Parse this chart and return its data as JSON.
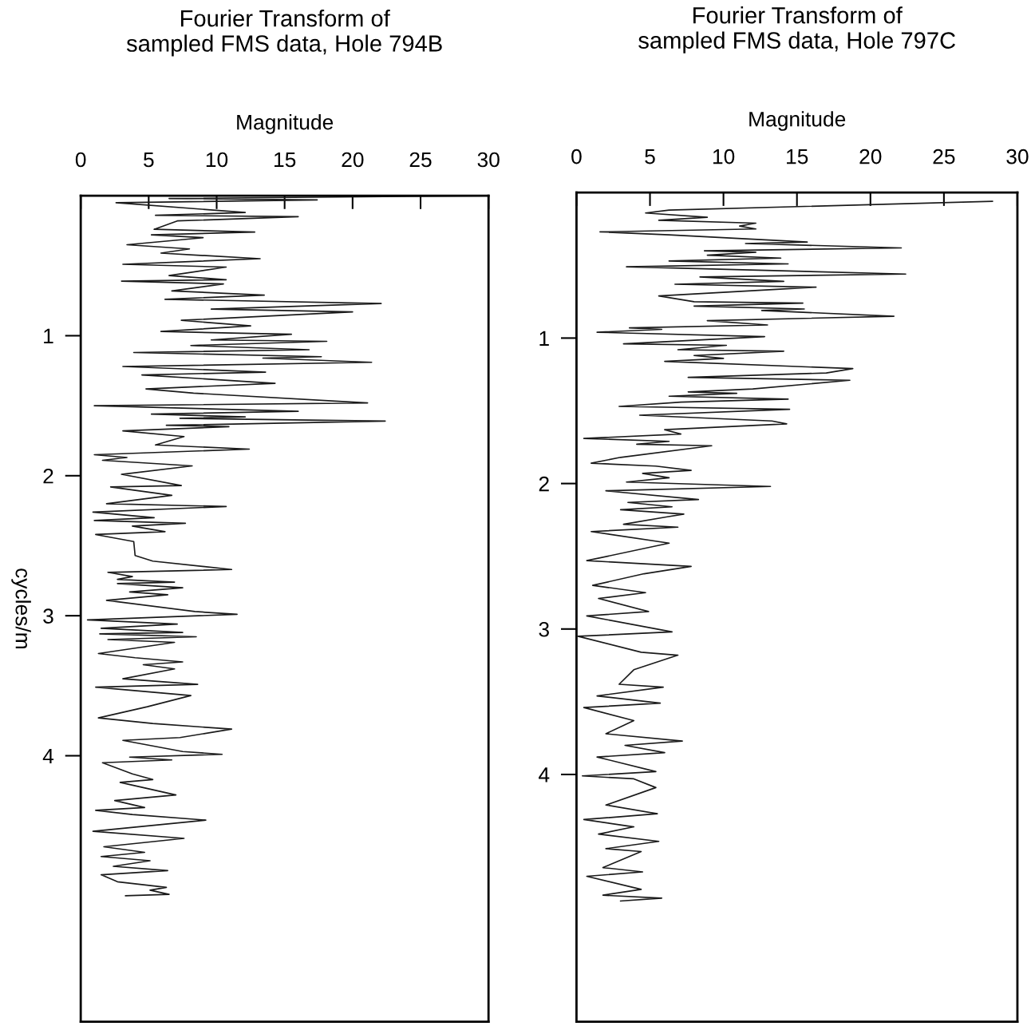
{
  "chart_data": [
    {
      "type": "line",
      "title": "Fourier Transform of\nsampled FMS data, Hole 794B",
      "xlabel": "Magnitude",
      "ylabel": "cycles/m",
      "xlim": [
        0,
        30
      ],
      "ylim": [
        5.9,
        0
      ],
      "xticks": [
        0,
        5,
        10,
        15,
        20,
        25,
        30
      ],
      "yticks": [
        1,
        2,
        3,
        4
      ],
      "series": [
        {
          "color": "#1a1a1a",
          "x": [
            29.9,
            6.5,
            17.4,
            2.6,
            12.1,
            5.5,
            16.0,
            7.1,
            5.4,
            12.8,
            5.2,
            9.0,
            3.4,
            8.0,
            5.9,
            13.2,
            3.1,
            10.7,
            6.5,
            10.7,
            3.0,
            10.5,
            6.7,
            13.5,
            6.2,
            22.1,
            9.6,
            20.0,
            7.4,
            12.5,
            5.9,
            15.5,
            9.6,
            18.1,
            8.1,
            16.8,
            3.9,
            17.7,
            13.4,
            21.4,
            3.1,
            13.6,
            4.5,
            14.3,
            4.8,
            8.3,
            21.1,
            1.0,
            16.0,
            5.2,
            12.1,
            7.3,
            22.4,
            6.3,
            10.9,
            3.1,
            7.6,
            5.5,
            12.4,
            1.0,
            3.4,
            1.6,
            8.2,
            3.0,
            7.4,
            2.2,
            6.7,
            1.9,
            10.7,
            0.9,
            5.4,
            1.0,
            7.7,
            3.8,
            6.2,
            1.1,
            3.9,
            4.0,
            5.3,
            11.1,
            2.0,
            3.8,
            2.7,
            6.9,
            2.7,
            7.5,
            3.6,
            6.4,
            1.9,
            8.4,
            11.5,
            0.5,
            7.1,
            1.5,
            7.5,
            1.4,
            8.5,
            2.0,
            6.9,
            1.3,
            4.0,
            7.5,
            4.6,
            6.9,
            3.1,
            8.6,
            1.1,
            8.1,
            4.9,
            1.3,
            5.3,
            11.1,
            7.3,
            3.1,
            7.5,
            10.4,
            3.6,
            6.7,
            1.6,
            3.8,
            5.3,
            2.9,
            7.0,
            2.5,
            4.7,
            1.1,
            3.8,
            9.2,
            0.9,
            7.6,
            1.7,
            4.7,
            1.5,
            5.1,
            2.4,
            6.4,
            1.5,
            2.7,
            6.3,
            5.1,
            6.5,
            3.3
          ],
          "values": [
            0.0,
            0.02,
            0.03,
            0.05,
            0.12,
            0.14,
            0.15,
            0.18,
            0.24,
            0.26,
            0.28,
            0.3,
            0.35,
            0.38,
            0.41,
            0.45,
            0.49,
            0.51,
            0.57,
            0.6,
            0.61,
            0.63,
            0.68,
            0.71,
            0.74,
            0.77,
            0.81,
            0.83,
            0.89,
            0.93,
            0.97,
            0.99,
            1.03,
            1.04,
            1.07,
            1.1,
            1.12,
            1.15,
            1.16,
            1.19,
            1.22,
            1.26,
            1.28,
            1.34,
            1.38,
            1.41,
            1.48,
            1.5,
            1.54,
            1.56,
            1.58,
            1.59,
            1.61,
            1.64,
            1.65,
            1.68,
            1.72,
            1.78,
            1.81,
            1.85,
            1.87,
            1.89,
            1.93,
            1.99,
            2.07,
            2.08,
            2.14,
            2.2,
            2.22,
            2.26,
            2.3,
            2.32,
            2.34,
            2.36,
            2.4,
            2.42,
            2.47,
            2.57,
            2.61,
            2.67,
            2.69,
            2.72,
            2.74,
            2.76,
            2.77,
            2.8,
            2.83,
            2.85,
            2.89,
            2.97,
            2.99,
            3.03,
            3.06,
            3.09,
            3.12,
            3.13,
            3.15,
            3.17,
            3.19,
            3.27,
            3.3,
            3.33,
            3.35,
            3.38,
            3.45,
            3.49,
            3.51,
            3.57,
            3.65,
            3.73,
            3.77,
            3.81,
            3.87,
            3.89,
            3.97,
            3.99,
            4.01,
            4.03,
            4.05,
            4.13,
            4.17,
            4.19,
            4.28,
            4.32,
            4.37,
            4.39,
            4.42,
            4.46,
            4.54,
            4.59,
            4.65,
            4.69,
            4.72,
            4.75,
            4.79,
            4.82,
            4.85,
            4.9,
            4.94,
            4.96,
            4.99,
            5.0
          ]
        }
      ]
    },
    {
      "type": "line",
      "title": "Fourier Transform of\nsampled FMS data, Hole 797C",
      "xlabel": "Magnitude",
      "xlim": [
        0,
        30
      ],
      "ylim": [
        5.7,
        0
      ],
      "xticks": [
        0,
        5,
        10,
        15,
        20,
        25,
        30
      ],
      "yticks": [
        1,
        2,
        3,
        4
      ],
      "series": [
        {
          "color": "#1a1a1a",
          "x": [
            28.3,
            6.3,
            4.7,
            8.9,
            5.6,
            12.2,
            11.1,
            12.2,
            1.6,
            6.3,
            15.7,
            11.5,
            22.1,
            8.7,
            12.2,
            8.9,
            13.9,
            6.3,
            14.4,
            3.4,
            22.4,
            8.4,
            14.1,
            6.7,
            16.3,
            5.6,
            8.0,
            15.4,
            8.0,
            15.5,
            12.6,
            21.6,
            8.9,
            13.0,
            3.6,
            5.8,
            1.4,
            12.8,
            3.2,
            10.2,
            6.9,
            14.1,
            8.0,
            10.0,
            6.0,
            18.8,
            17.0,
            7.6,
            18.6,
            12.0,
            7.6,
            10.9,
            6.3,
            14.4,
            7.1,
            2.9,
            14.5,
            4.3,
            13.3,
            14.3,
            6.0,
            7.1,
            0.5,
            6.3,
            4.1,
            9.2,
            3.0,
            1.0,
            5.4,
            7.8,
            4.5,
            6.3,
            3.4,
            13.2,
            2.0,
            8.3,
            3.5,
            6.5,
            3.0,
            7.3,
            6.1,
            3.2,
            6.9,
            1.0,
            6.3,
            0.7,
            7.8,
            4.6,
            1.1,
            4.7,
            1.5,
            4.9,
            0.7,
            6.5,
            0.1,
            4.4,
            6.9,
            3.9,
            2.9,
            5.9,
            1.4,
            5.7,
            0.5,
            3.9,
            2.0,
            7.2,
            3.3,
            6.0,
            1.4,
            5.4,
            0.4,
            3.9,
            5.4,
            2.0,
            5.5,
            0.5,
            3.9,
            1.5,
            5.6,
            2.0,
            4.4,
            1.8,
            4.5,
            0.7,
            4.4,
            1.8,
            5.8,
            3.0
          ],
          "values": [
            0.06,
            0.12,
            0.14,
            0.17,
            0.19,
            0.21,
            0.23,
            0.25,
            0.27,
            0.29,
            0.34,
            0.35,
            0.38,
            0.4,
            0.41,
            0.43,
            0.45,
            0.47,
            0.49,
            0.51,
            0.56,
            0.58,
            0.61,
            0.63,
            0.65,
            0.71,
            0.75,
            0.76,
            0.78,
            0.8,
            0.81,
            0.85,
            0.88,
            0.91,
            0.93,
            0.94,
            0.96,
            0.99,
            1.04,
            1.05,
            1.08,
            1.09,
            1.12,
            1.14,
            1.16,
            1.21,
            1.24,
            1.27,
            1.29,
            1.35,
            1.37,
            1.38,
            1.4,
            1.42,
            1.44,
            1.47,
            1.49,
            1.53,
            1.57,
            1.59,
            1.63,
            1.66,
            1.69,
            1.71,
            1.73,
            1.74,
            1.82,
            1.86,
            1.88,
            1.91,
            1.93,
            1.96,
            1.99,
            2.02,
            2.05,
            2.11,
            2.13,
            2.16,
            2.18,
            2.21,
            2.23,
            2.28,
            2.3,
            2.33,
            2.41,
            2.53,
            2.57,
            2.62,
            2.7,
            2.75,
            2.79,
            2.88,
            2.91,
            3.02,
            3.05,
            3.16,
            3.18,
            3.28,
            3.38,
            3.4,
            3.46,
            3.51,
            3.54,
            3.63,
            3.72,
            3.77,
            3.8,
            3.85,
            3.88,
            3.98,
            4.01,
            4.03,
            4.09,
            4.21,
            4.27,
            4.31,
            4.36,
            4.41,
            4.46,
            4.51,
            4.53,
            4.64,
            4.67,
            4.7,
            4.79,
            4.83,
            4.85,
            4.87
          ]
        }
      ]
    }
  ]
}
